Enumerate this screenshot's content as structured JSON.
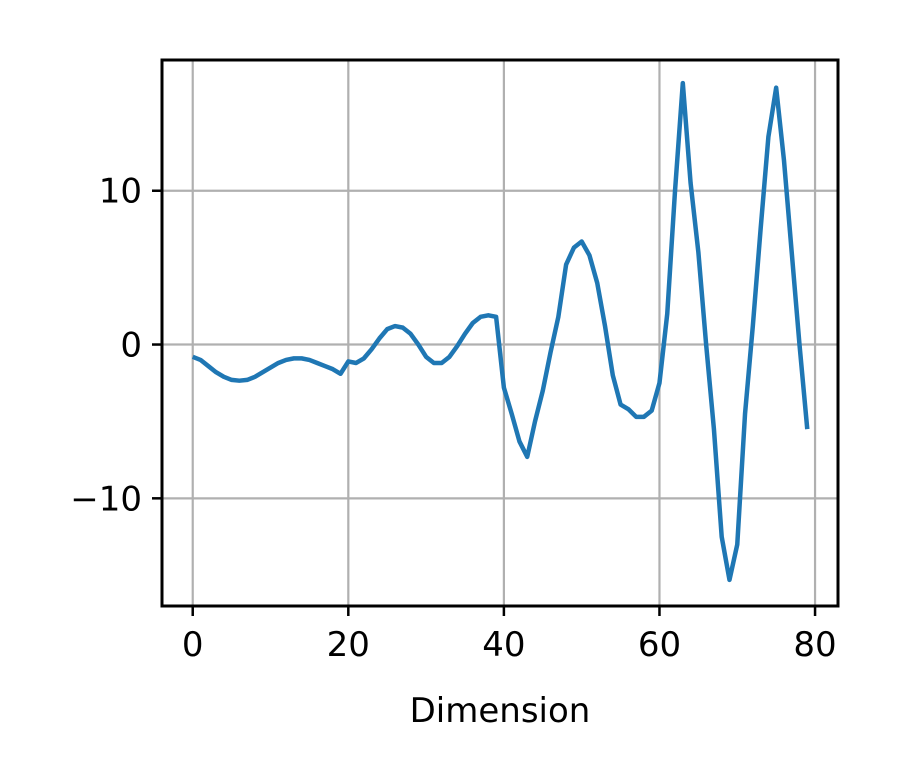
{
  "chart_data": {
    "type": "line",
    "title": "",
    "xlabel": "Dimension",
    "ylabel": "",
    "xlim": [
      -3.95,
      82.95
    ],
    "ylim": [
      -17,
      18.5
    ],
    "xticks": [
      0,
      20,
      40,
      60,
      80
    ],
    "yticks": [
      -10,
      0,
      10
    ],
    "ytick_labels": [
      "−10",
      "0",
      "10"
    ],
    "grid": true,
    "legend": "none",
    "line_color": "#1f77b4",
    "grid_color": "#b0b0b0",
    "series": [
      {
        "x": [
          0,
          1,
          2,
          3,
          4,
          5,
          6,
          7,
          8,
          9,
          10,
          11,
          12,
          13,
          14,
          15,
          16,
          17,
          18,
          19,
          20,
          21,
          22,
          23,
          24,
          25,
          26,
          27,
          28,
          29,
          30,
          31,
          32,
          33,
          34,
          35,
          36,
          37,
          38,
          39,
          40,
          41,
          42,
          43,
          44,
          45,
          46,
          47,
          48,
          49,
          50,
          51,
          52,
          53,
          54,
          55,
          56,
          57,
          58,
          59,
          60,
          61,
          62,
          63,
          64,
          65,
          66,
          67,
          68,
          69,
          70,
          71,
          72,
          73,
          74,
          75,
          76,
          77,
          78,
          79
        ],
        "values": [
          -0.8,
          -1.0,
          -1.4,
          -1.8,
          -2.1,
          -2.3,
          -2.35,
          -2.3,
          -2.1,
          -1.8,
          -1.5,
          -1.2,
          -1.0,
          -0.9,
          -0.9,
          -1.0,
          -1.2,
          -1.4,
          -1.6,
          -1.9,
          -1.1,
          -1.2,
          -0.9,
          -0.3,
          0.4,
          1.0,
          1.2,
          1.1,
          0.7,
          0.0,
          -0.8,
          -1.2,
          -1.2,
          -0.8,
          -0.1,
          0.7,
          1.4,
          1.8,
          1.9,
          1.8,
          -2.8,
          -4.5,
          -6.3,
          -7.3,
          -5.0,
          -3.0,
          -0.5,
          1.8,
          5.2,
          6.3,
          6.7,
          5.8,
          4.0,
          1.2,
          -2.0,
          -3.9,
          -4.2,
          -4.7,
          -4.7,
          -4.3,
          -2.5,
          2.0,
          10.0,
          17.0,
          10.5,
          6.0,
          0.0,
          -5.5,
          -12.5,
          -15.3,
          -13.0,
          -4.5,
          1.2,
          7.5,
          13.5,
          16.7,
          12.0,
          6.0,
          0.0,
          -5.5
        ]
      }
    ]
  }
}
